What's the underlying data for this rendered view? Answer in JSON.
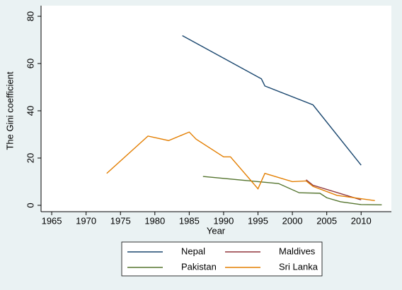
{
  "chart_data": {
    "type": "line",
    "x_label": "Year",
    "y_label": "The Gini coefficient",
    "xlim": [
      1963.45,
      2014.4
    ],
    "ylim": [
      -2.7,
      84.5
    ],
    "xticks": [
      1965,
      1970,
      1975,
      1980,
      1985,
      1990,
      1995,
      2000,
      2005,
      2010
    ],
    "yticks": [
      0,
      20,
      40,
      60,
      80
    ],
    "series": [
      {
        "name": "Nepal",
        "color": "#1a476f",
        "x": [
          1984,
          1995.5,
          1996,
          2003,
          2010
        ],
        "values": [
          71.8,
          53.5,
          50.5,
          42.5,
          17
        ]
      },
      {
        "name": "Maldives",
        "color": "#90353b",
        "x": [
          2002,
          2003,
          2010
        ],
        "values": [
          10.8,
          8.5,
          2.3
        ]
      },
      {
        "name": "Pakistan",
        "color": "#55752f",
        "x": [
          1987,
          1998,
          2001,
          2004,
          2005,
          2007,
          2010,
          2013
        ],
        "values": [
          12.2,
          9.2,
          5.3,
          5.1,
          3.2,
          1.5,
          0.3,
          0.2
        ]
      },
      {
        "name": "Sri Lanka",
        "color": "#e37e00",
        "x": [
          1973,
          1979,
          1982,
          1985,
          1986,
          1990,
          1991,
          1995,
          1996,
          2000,
          2002,
          2003,
          2006.5,
          2012
        ],
        "values": [
          13.5,
          29.3,
          27.4,
          31,
          28,
          20.5,
          20.5,
          7,
          13.5,
          10,
          10.3,
          8,
          4.2,
          2
        ]
      }
    ]
  }
}
